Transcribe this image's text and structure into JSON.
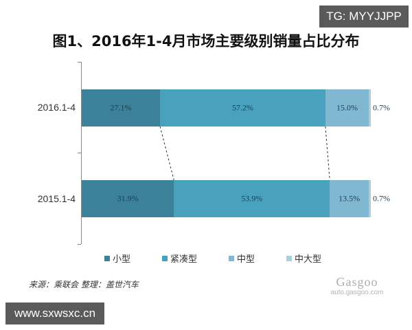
{
  "watermark": {
    "top_right": "TG: MYYJJPP",
    "bottom_left": "www.sxwsxc.cn"
  },
  "footer": {
    "source": "来源：乘联会   整理：盖世汽车",
    "logo_text": "Gasgoo",
    "logo_sub": "auto.gasgoo.com"
  },
  "chart_data": {
    "type": "bar",
    "orientation": "horizontal",
    "stacked": "percent",
    "title": "图1、2016年1-4月市场主要级别销量占比分布",
    "xlabel": "",
    "ylabel": "",
    "categories": [
      "2016.1-4",
      "2015.1-4"
    ],
    "series": [
      {
        "name": "小型",
        "values": [
          27.1,
          31.9
        ],
        "labels": [
          "27.1%",
          "31.9%"
        ],
        "color": "#3b8199"
      },
      {
        "name": "紧凑型",
        "values": [
          57.2,
          53.9
        ],
        "labels": [
          "57.2%",
          "53.9%"
        ],
        "color": "#48a2bd"
      },
      {
        "name": "中型",
        "values": [
          15.0,
          13.5
        ],
        "labels": [
          "15.0%",
          "13.5%"
        ],
        "color": "#7fb8d0"
      },
      {
        "name": "中大型",
        "values": [
          0.7,
          0.7
        ],
        "labels": [
          "0.7%",
          "0.7%"
        ],
        "color": "#a9cfdc"
      }
    ],
    "legend_position": "bottom",
    "grid": false,
    "annotations": "dashed connector lines between segment boundaries of the two bars"
  }
}
